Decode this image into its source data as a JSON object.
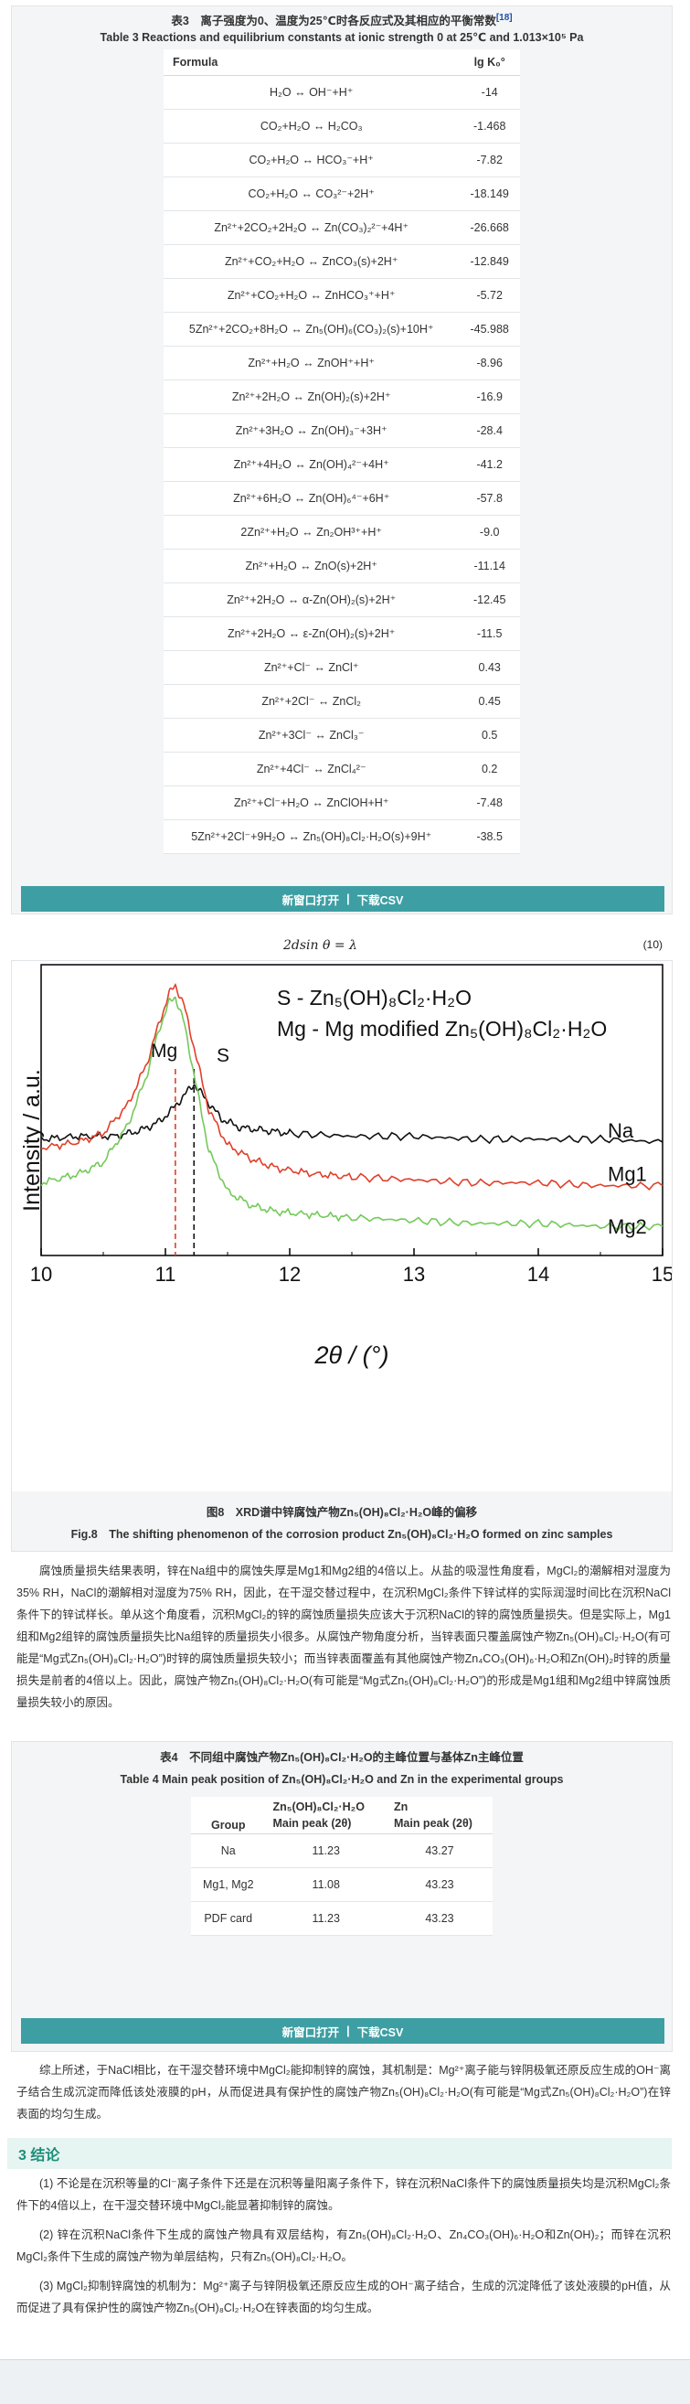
{
  "table3": {
    "caption_cn": "表3　离子强度为0、温度为25℃时各反应式及其相应的平衡常数",
    "caption_ref": "[18]",
    "caption_en": "Table 3  Reactions and equilibrium constants at ionic strength 0 at 25℃ and 1.013×10⁵ Pa",
    "header_formula": "Formula",
    "header_k": "lg K₀°",
    "rows": [
      {
        "f": "H₂O ↔ OH⁻+H⁺",
        "k": "-14"
      },
      {
        "f": "CO₂+H₂O ↔ H₂CO₃",
        "k": "-1.468"
      },
      {
        "f": "CO₂+H₂O ↔ HCO₃⁻+H⁺",
        "k": "-7.82"
      },
      {
        "f": "CO₂+H₂O ↔ CO₃²⁻+2H⁺",
        "k": "-18.149"
      },
      {
        "f": "Zn²⁺+2CO₂+2H₂O ↔ Zn(CO₃)₂²⁻+4H⁺",
        "k": "-26.668"
      },
      {
        "f": "Zn²⁺+CO₂+H₂O ↔ ZnCO₃(s)+2H⁺",
        "k": "-12.849"
      },
      {
        "f": "Zn²⁺+CO₂+H₂O ↔ ZnHCO₃⁺+H⁺",
        "k": "-5.72"
      },
      {
        "f": "5Zn²⁺+2CO₂+8H₂O ↔ Zn₅(OH)₆(CO₃)₂(s)+10H⁺",
        "k": "-45.988"
      },
      {
        "f": "Zn²⁺+H₂O ↔ ZnOH⁺+H⁺",
        "k": "-8.96"
      },
      {
        "f": "Zn²⁺+2H₂O ↔ Zn(OH)₂(s)+2H⁺",
        "k": "-16.9"
      },
      {
        "f": "Zn²⁺+3H₂O ↔ Zn(OH)₃⁻+3H⁺",
        "k": "-28.4"
      },
      {
        "f": "Zn²⁺+4H₂O ↔ Zn(OH)₄²⁻+4H⁺",
        "k": "-41.2"
      },
      {
        "f": "Zn²⁺+6H₂O ↔ Zn(OH)₆⁴⁻+6H⁺",
        "k": "-57.8"
      },
      {
        "f": "2Zn²⁺+H₂O ↔ Zn₂OH³⁺+H⁺",
        "k": "-9.0"
      },
      {
        "f": "Zn²⁺+H₂O ↔ ZnO(s)+2H⁺",
        "k": "-11.14"
      },
      {
        "f": "Zn²⁺+2H₂O ↔ α-Zn(OH)₂(s)+2H⁺",
        "k": "-12.45"
      },
      {
        "f": "Zn²⁺+2H₂O ↔ ε-Zn(OH)₂(s)+2H⁺",
        "k": "-11.5"
      },
      {
        "f": "Zn²⁺+Cl⁻ ↔ ZnCl⁺",
        "k": "0.43"
      },
      {
        "f": "Zn²⁺+2Cl⁻ ↔ ZnCl₂",
        "k": "0.45"
      },
      {
        "f": "Zn²⁺+3Cl⁻ ↔ ZnCl₃⁻",
        "k": "0.5"
      },
      {
        "f": "Zn²⁺+4Cl⁻ ↔ ZnCl₄²⁻",
        "k": "0.2"
      },
      {
        "f": "Zn²⁺+Cl⁻+H₂O ↔ ZnClOH+H⁺",
        "k": "-7.48"
      },
      {
        "f": "5Zn²⁺+2Cl⁻+9H₂O ↔ Zn₅(OH)₈Cl₂·H₂O(s)+9H⁺",
        "k": "-38.5"
      }
    ],
    "btn_open": "新窗口打开",
    "btn_sep": "|",
    "btn_csv": "下载CSV"
  },
  "equation": {
    "text": "2dsin θ = λ",
    "number": "(10)"
  },
  "figure8": {
    "caption_cn": "图8　XRD谱中锌腐蚀产物Zn₅(OH)₈Cl₂·H₂O峰的偏移",
    "caption_en": "Fig.8　The shifting phenomenon of the corrosion product Zn₅(OH)₈Cl₂·H₂O formed on zinc samples"
  },
  "chart_data": {
    "type": "line",
    "xlabel": "2θ / (°)",
    "ylabel": "Intensity / a.u.",
    "xlim": [
      10,
      15
    ],
    "xticks": [
      "10",
      "11",
      "12",
      "13",
      "14",
      "15"
    ],
    "annotations": [
      "S - Zn₅(OH)₈Cl₂·H₂O",
      "Mg -  Mg modified Zn₅(OH)₈Cl₂·H₂O",
      "Mg",
      "S"
    ],
    "reference_lines": [
      {
        "label": "Mg",
        "x": 11.08,
        "color": "#e0402a"
      },
      {
        "label": "S",
        "x": 11.23,
        "color": "#111111"
      }
    ],
    "series": [
      {
        "name": "Na",
        "color": "#111111",
        "x": [
          10.0,
          10.3,
          10.6,
          10.8,
          10.95,
          11.05,
          11.15,
          11.23,
          11.32,
          11.45,
          11.6,
          11.8,
          12.0,
          12.5,
          13.0,
          13.5,
          14.0,
          14.5,
          15.0
        ],
        "y": [
          0.4,
          0.41,
          0.41,
          0.43,
          0.46,
          0.5,
          0.55,
          0.59,
          0.54,
          0.47,
          0.44,
          0.43,
          0.42,
          0.41,
          0.41,
          0.4,
          0.4,
          0.4,
          0.39
        ]
      },
      {
        "name": "Mg1",
        "color": "#e0402a",
        "x": [
          10.0,
          10.3,
          10.5,
          10.7,
          10.85,
          10.95,
          11.03,
          11.08,
          11.15,
          11.25,
          11.35,
          11.5,
          11.7,
          11.9,
          12.2,
          12.5,
          13.0,
          13.5,
          14.0,
          14.5,
          15.0
        ],
        "y": [
          0.37,
          0.39,
          0.42,
          0.52,
          0.66,
          0.8,
          0.9,
          0.93,
          0.86,
          0.68,
          0.5,
          0.38,
          0.33,
          0.3,
          0.28,
          0.27,
          0.26,
          0.25,
          0.25,
          0.24,
          0.24
        ]
      },
      {
        "name": "Mg2",
        "color": "#74c95a",
        "x": [
          10.0,
          10.3,
          10.5,
          10.7,
          10.85,
          10.95,
          11.03,
          11.08,
          11.15,
          11.25,
          11.35,
          11.5,
          11.7,
          11.9,
          12.2,
          12.5,
          13.0,
          13.5,
          14.0,
          14.5,
          15.0
        ],
        "y": [
          0.25,
          0.28,
          0.32,
          0.45,
          0.62,
          0.78,
          0.87,
          0.89,
          0.8,
          0.58,
          0.36,
          0.22,
          0.17,
          0.15,
          0.14,
          0.13,
          0.12,
          0.11,
          0.11,
          0.1,
          0.1
        ]
      }
    ]
  },
  "para1": "腐蚀质量损失结果表明，锌在Na组中的腐蚀失厚是Mg1和Mg2组的4倍以上。从盐的吸湿性角度看，MgCl₂的潮解相对湿度为35% RH，NaCl的潮解相对湿度为75% RH，因此，在干湿交替过程中，在沉积MgCl₂条件下锌试样的实际润湿时间比在沉积NaCl条件下的锌试样长。单从这个角度看，沉积MgCl₂的锌的腐蚀质量损失应该大于沉积NaCl的锌的腐蚀质量损失。但是实际上，Mg1组和Mg2组锌的腐蚀质量损失比Na组锌的质量损失小很多。从腐蚀产物角度分析，当锌表面只覆盖腐蚀产物Zn₅(OH)₈Cl₂·H₂O(有可能是“Mg式Zn₅(OH)₈Cl₂·H₂O”)时锌的腐蚀质量损失较小；而当锌表面覆盖有其他腐蚀产物Zn₄CO₃(OH)₆·H₂O和Zn(OH)₂时锌的质量损失是前者的4倍以上。因此，腐蚀产物Zn₅(OH)₈Cl₂·H₂O(有可能是“Mg式Zn₅(OH)₈Cl₂·H₂O”)的形成是Mg1组和Mg2组中锌腐蚀质量损失较小的原因。",
  "table4": {
    "caption_cn": "表4　不同组中腐蚀产物Zn₅(OH)₈Cl₂·H₂O的主峰位置与基体Zn主峰位置",
    "caption_en": "Table 4  Main peak position of Zn₅(OH)₈Cl₂·H₂O and Zn in the experimental groups",
    "headers": [
      "Group",
      "Zn₅(OH)₈Cl₂·H₂O",
      "Main peak (2θ)",
      "Zn",
      "Main peak (2θ)"
    ],
    "rows": [
      {
        "group": "Na",
        "a": "11.23",
        "b": "43.27"
      },
      {
        "group": "Mg1, Mg2",
        "a": "11.08",
        "b": "43.23"
      },
      {
        "group": "PDF card",
        "a": "11.23",
        "b": "43.23"
      }
    ],
    "btn_open": "新窗口打开",
    "btn_sep": "|",
    "btn_csv": "下载CSV"
  },
  "para2": "综上所述，于NaCl相比，在干湿交替环境中MgCl₂能抑制锌的腐蚀，其机制是：Mg²⁺离子能与锌阴极氧还原反应生成的OH⁻离子结合生成沉淀而降低该处液膜的pH，从而促进具有保护性的腐蚀产物Zn₅(OH)₈Cl₂·H₂O(有可能是“Mg式Zn₅(OH)₈Cl₂·H₂O”)在锌表面的均匀生成。",
  "section3": "3 结论",
  "concl1": "(1) 不论是在沉积等量的Cl⁻离子条件下还是在沉积等量阳离子条件下，锌在沉积NaCl条件下的腐蚀质量损失均是沉积MgCl₂条件下的4倍以上，在干湿交替环境中MgCl₂能显著抑制锌的腐蚀。",
  "concl2": "(2) 锌在沉积NaCl条件下生成的腐蚀产物具有双层结构，有Zn₅(OH)₈Cl₂·H₂O、Zn₄CO₃(OH)₆·H₂O和Zn(OH)₂；而锌在沉积MgCl₂条件下生成的腐蚀产物为单层结构，只有Zn₅(OH)₈Cl₂·H₂O。",
  "concl3": "(3) MgCl₂抑制锌腐蚀的机制为：Mg²⁺离子与锌阴极氧还原反应生成的OH⁻离子结合，生成的沉淀降低了该处液膜的pH值，从而促进了具有保护性的腐蚀产物Zn₅(OH)₈Cl₂·H₂O在锌表面的均匀生成。"
}
